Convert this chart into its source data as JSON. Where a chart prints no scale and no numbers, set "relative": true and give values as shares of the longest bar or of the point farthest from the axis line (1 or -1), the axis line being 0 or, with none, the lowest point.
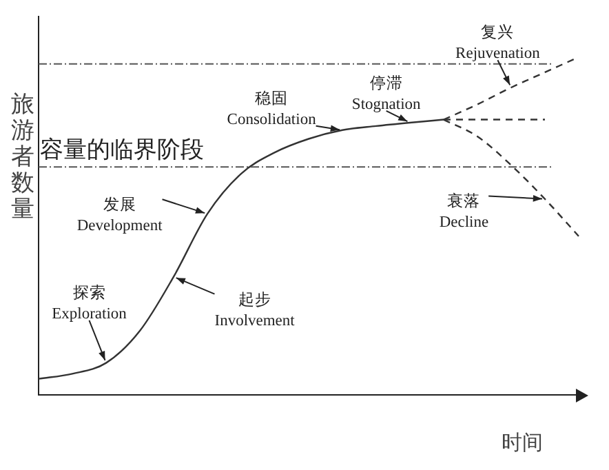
{
  "chart_data": {
    "type": "line",
    "relative": true,
    "xlabel": "时间",
    "ylabel": "旅游者数量",
    "categories": [
      null,
      null,
      null,
      null,
      null,
      null,
      null,
      null,
      null,
      null,
      null,
      null,
      null,
      null,
      null,
      null,
      null
    ],
    "series": [
      {
        "color": "#333333",
        "line_style": "solid",
        "values": [
          0.048,
          0.063,
          0.095,
          0.19,
          0.35,
          0.536,
          0.655,
          0.718,
          0.758,
          0.784,
          0.796,
          0.806,
          0.815,
          null,
          null,
          null,
          null
        ]
      },
      {
        "color": "#333333",
        "line_style": "dashed",
        "values": [
          null,
          null,
          null,
          null,
          null,
          null,
          null,
          null,
          null,
          null,
          null,
          null,
          0.815,
          0.86,
          0.91,
          0.955,
          1
        ]
      },
      {
        "color": "#333333",
        "line_style": "dashed",
        "values": [
          null,
          null,
          null,
          null,
          null,
          null,
          null,
          null,
          null,
          null,
          null,
          null,
          0.815,
          0.815,
          0.815,
          0.815,
          null
        ]
      },
      {
        "color": "#333333",
        "line_style": "dashed",
        "values": [
          null,
          null,
          null,
          null,
          null,
          null,
          null,
          null,
          null,
          null,
          null,
          null,
          0.815,
          0.765,
          0.68,
          0.58,
          0.47
        ]
      }
    ],
    "ref_lines": [
      {
        "axis": "y",
        "value": 0.675,
        "label": "容量的临界阶段",
        "color": "#555555"
      },
      {
        "axis": "y",
        "value": 0.98,
        "label": null,
        "color": "#555555"
      }
    ],
    "annotations": [
      "探索\nExploration",
      "起步\nInvolvement",
      "发展\nDevelopment",
      "稳固\nConsolidation",
      "停滞\nStognation",
      "复兴\nRejuvenation",
      "衰落\nDecline"
    ],
    "grid": false,
    "legend": false,
    "marker": "none"
  }
}
